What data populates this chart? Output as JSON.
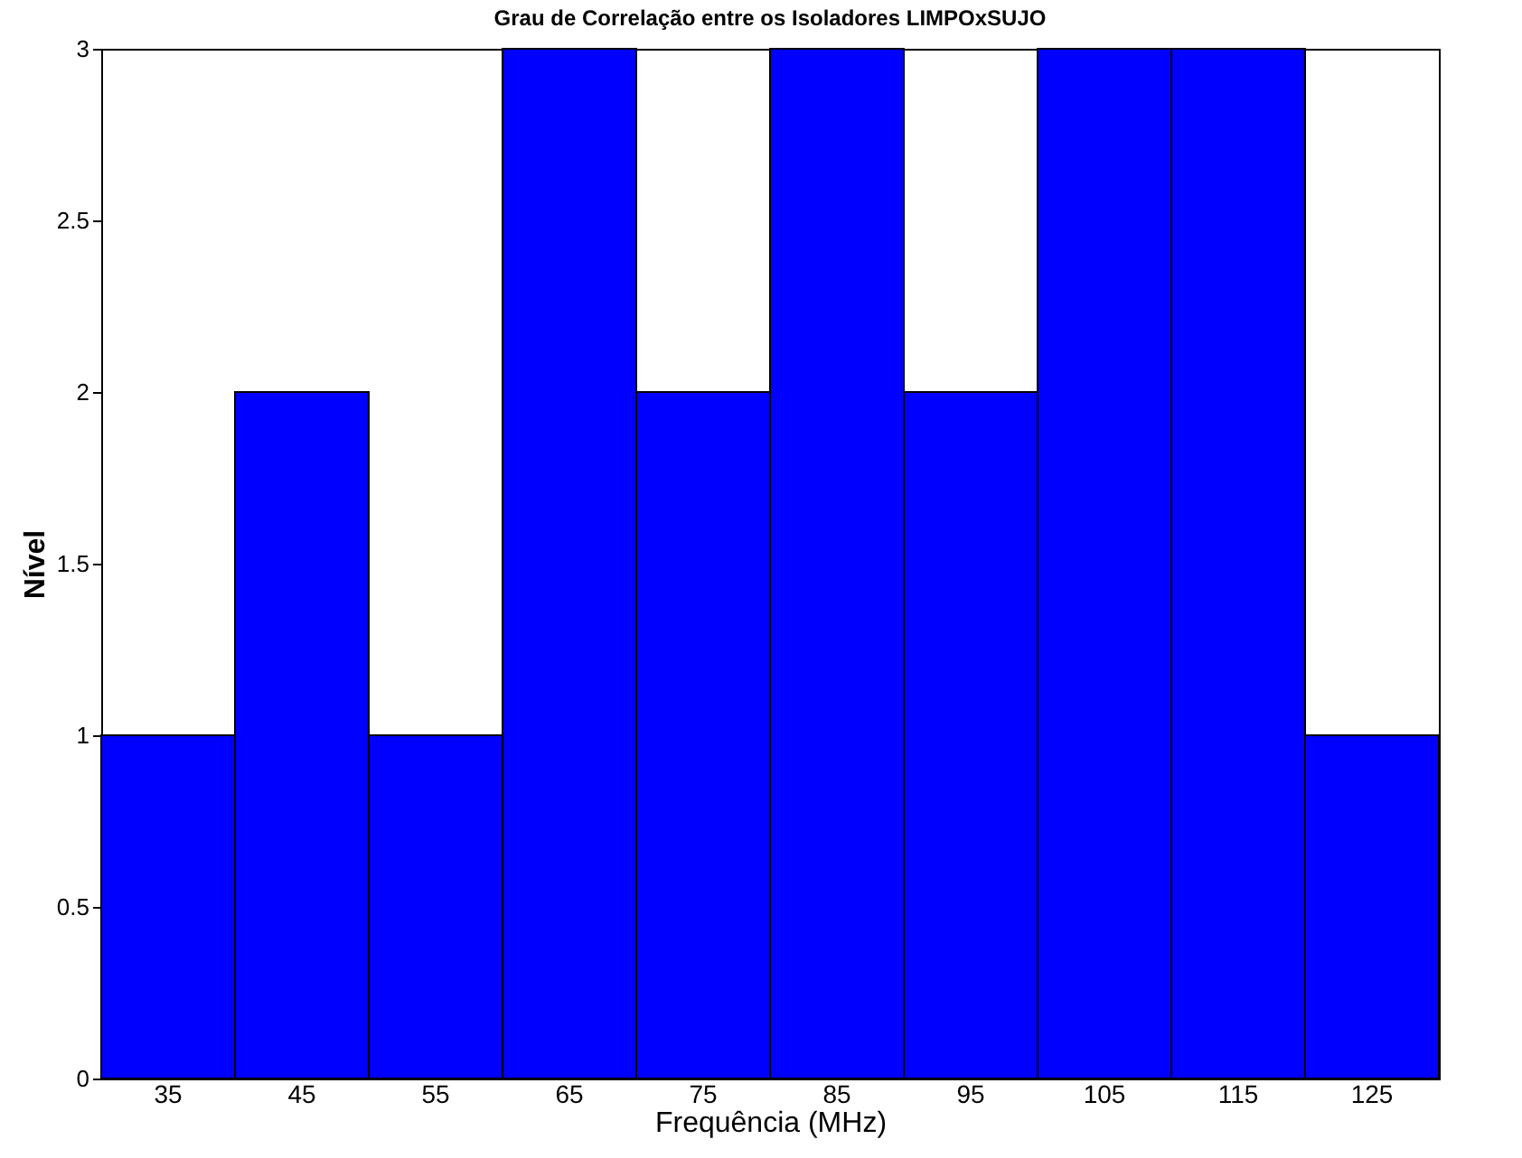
{
  "chart_data": {
    "type": "bar",
    "title": "Grau de Correlação entre os Isoladores LIMPOxSUJO",
    "xlabel": "Frequência (MHz)",
    "ylabel": "Nível",
    "categories": [
      "35",
      "45",
      "55",
      "65",
      "75",
      "85",
      "95",
      "105",
      "115",
      "125"
    ],
    "values": [
      1,
      2,
      1,
      3,
      2,
      3,
      2,
      3,
      3,
      1
    ],
    "color": "#0000ff",
    "ylim": [
      0,
      3
    ],
    "yticks": [
      0,
      0.5,
      1,
      1.5,
      2,
      2.5,
      3
    ],
    "grid": false
  }
}
